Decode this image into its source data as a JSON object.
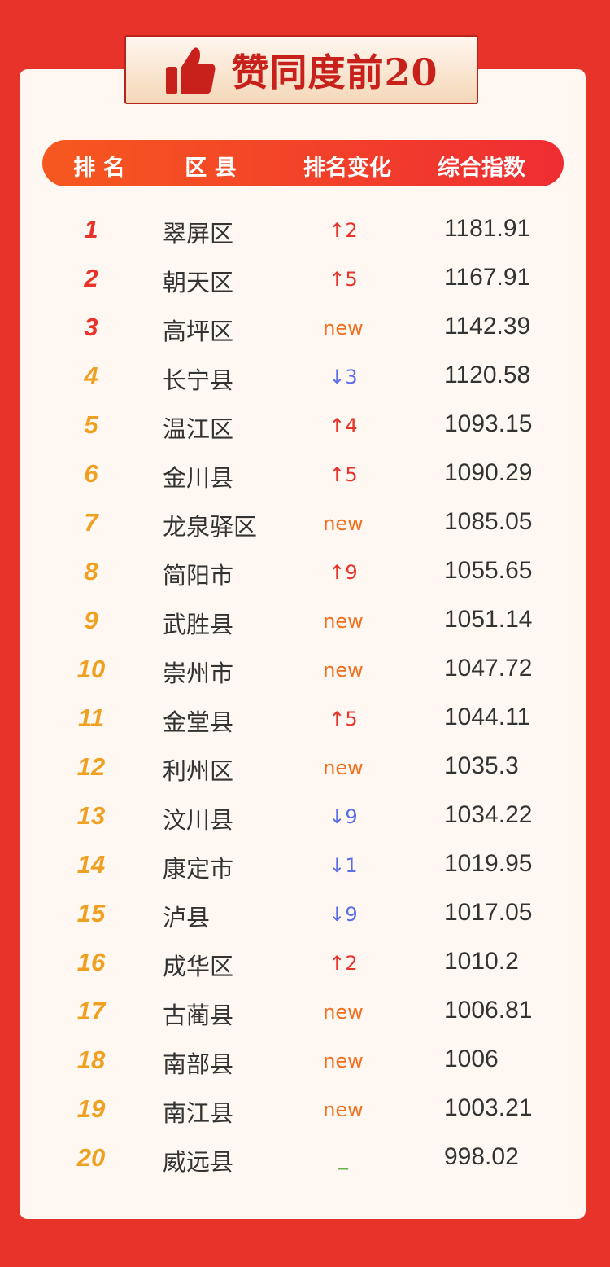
{
  "title": "赞同度前20",
  "icon": "thumbs-up-icon",
  "colors": {
    "background": "#e8332a",
    "top3": "#e8332a",
    "rank": "#f0a020",
    "up": "#e8332a",
    "down": "#5b6fe8",
    "new": "#f07020",
    "same": "#6ab04c"
  },
  "header": {
    "rank": "排 名",
    "district": "区 县",
    "change": "排名变化",
    "index": "综合指数"
  },
  "rows": [
    {
      "rank": "1",
      "name": "翠屏区",
      "change": "↑2",
      "type": "up",
      "index": "1181.91"
    },
    {
      "rank": "2",
      "name": "朝天区",
      "change": "↑5",
      "type": "up",
      "index": "1167.91"
    },
    {
      "rank": "3",
      "name": "高坪区",
      "change": "new",
      "type": "new",
      "index": "1142.39"
    },
    {
      "rank": "4",
      "name": "长宁县",
      "change": "↓3",
      "type": "down",
      "index": "1120.58"
    },
    {
      "rank": "5",
      "name": "温江区",
      "change": "↑4",
      "type": "up",
      "index": "1093.15"
    },
    {
      "rank": "6",
      "name": "金川县",
      "change": "↑5",
      "type": "up",
      "index": "1090.29"
    },
    {
      "rank": "7",
      "name": "龙泉驿区",
      "change": "new",
      "type": "new",
      "index": "1085.05"
    },
    {
      "rank": "8",
      "name": "简阳市",
      "change": "↑9",
      "type": "up",
      "index": "1055.65"
    },
    {
      "rank": "9",
      "name": "武胜县",
      "change": "new",
      "type": "new",
      "index": "1051.14"
    },
    {
      "rank": "10",
      "name": "崇州市",
      "change": "new",
      "type": "new",
      "index": "1047.72"
    },
    {
      "rank": "11",
      "name": "金堂县",
      "change": "↑5",
      "type": "up",
      "index": "1044.11"
    },
    {
      "rank": "12",
      "name": "利州区",
      "change": "new",
      "type": "new",
      "index": "1035.3"
    },
    {
      "rank": "13",
      "name": "汶川县",
      "change": "↓9",
      "type": "down",
      "index": "1034.22"
    },
    {
      "rank": "14",
      "name": "康定市",
      "change": "↓1",
      "type": "down",
      "index": "1019.95"
    },
    {
      "rank": "15",
      "name": "泸县",
      "change": "↓9",
      "type": "down",
      "index": "1017.05"
    },
    {
      "rank": "16",
      "name": "成华区",
      "change": "↑2",
      "type": "up",
      "index": "1010.2"
    },
    {
      "rank": "17",
      "name": "古蔺县",
      "change": "new",
      "type": "new",
      "index": "1006.81"
    },
    {
      "rank": "18",
      "name": "南部县",
      "change": "new",
      "type": "new",
      "index": "1006"
    },
    {
      "rank": "19",
      "name": "南江县",
      "change": "new",
      "type": "new",
      "index": "1003.21"
    },
    {
      "rank": "20",
      "name": "威远县",
      "change": "_",
      "type": "same",
      "index": "998.02"
    }
  ]
}
